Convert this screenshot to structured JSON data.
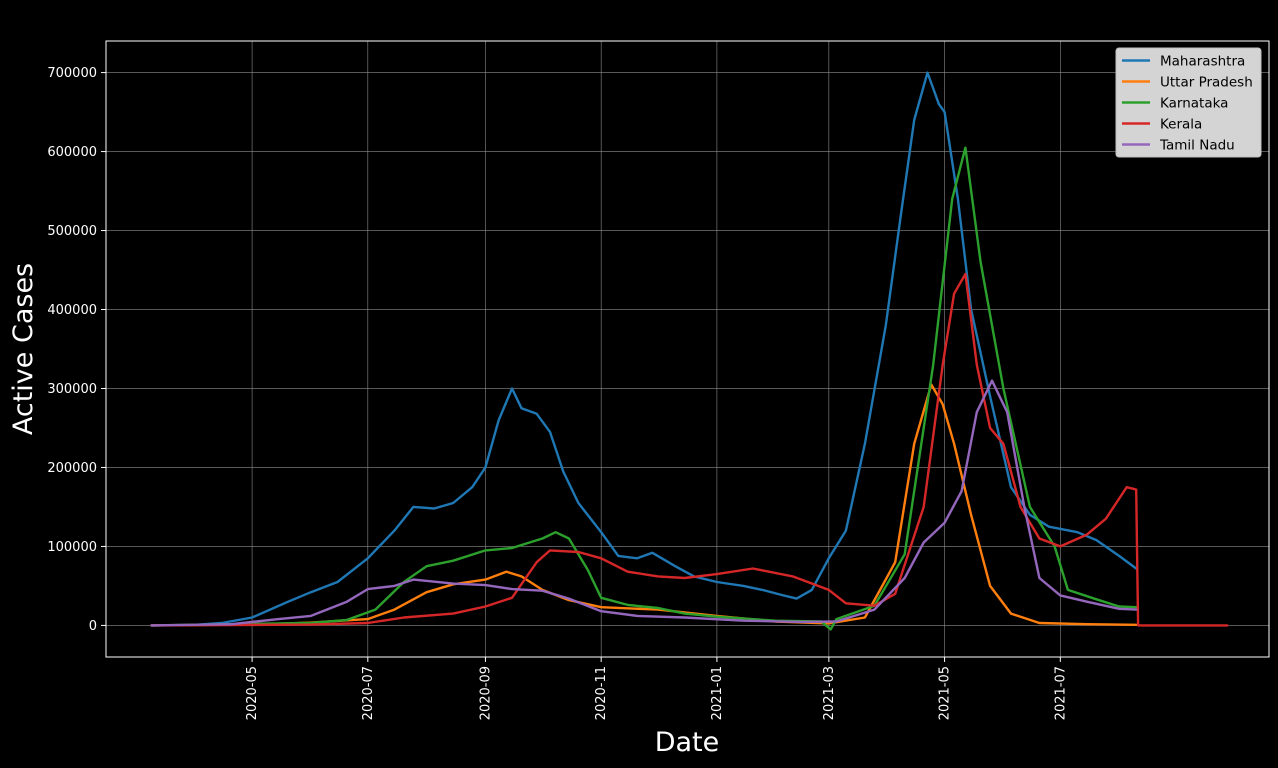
{
  "chart_data": {
    "type": "line",
    "title": "",
    "xlabel": "Date",
    "ylabel": "Active Cases",
    "xlim": [
      "2020-02-14",
      "2021-10-19"
    ],
    "ylim": [
      -40000,
      740000
    ],
    "grid": true,
    "legend_position": "top-right",
    "x_ticks": [
      "2020-05",
      "2020-07",
      "2020-09",
      "2020-11",
      "2021-01",
      "2021-03",
      "2021-05",
      "2021-07"
    ],
    "y_ticks": [
      0,
      100000,
      200000,
      300000,
      400000,
      500000,
      600000,
      700000
    ],
    "series": [
      {
        "name": "Maharashtra",
        "color": "#1f77b4",
        "points": [
          [
            "2020-03-09",
            0
          ],
          [
            "2020-03-31",
            500
          ],
          [
            "2020-04-15",
            3000
          ],
          [
            "2020-05-01",
            10000
          ],
          [
            "2020-05-20",
            30000
          ],
          [
            "2020-06-01",
            42000
          ],
          [
            "2020-06-15",
            55000
          ],
          [
            "2020-07-01",
            85000
          ],
          [
            "2020-07-15",
            120000
          ],
          [
            "2020-07-25",
            150000
          ],
          [
            "2020-08-05",
            148000
          ],
          [
            "2020-08-15",
            155000
          ],
          [
            "2020-08-25",
            175000
          ],
          [
            "2020-09-01",
            200000
          ],
          [
            "2020-09-08",
            260000
          ],
          [
            "2020-09-15",
            300000
          ],
          [
            "2020-09-20",
            275000
          ],
          [
            "2020-09-28",
            268000
          ],
          [
            "2020-10-05",
            245000
          ],
          [
            "2020-10-12",
            195000
          ],
          [
            "2020-10-20",
            155000
          ],
          [
            "2020-11-01",
            118000
          ],
          [
            "2020-11-10",
            88000
          ],
          [
            "2020-11-20",
            85000
          ],
          [
            "2020-11-28",
            92000
          ],
          [
            "2020-12-10",
            75000
          ],
          [
            "2020-12-20",
            62000
          ],
          [
            "2021-01-01",
            55000
          ],
          [
            "2021-01-15",
            50000
          ],
          [
            "2021-01-25",
            45000
          ],
          [
            "2021-02-05",
            38000
          ],
          [
            "2021-02-12",
            34000
          ],
          [
            "2021-02-20",
            45000
          ],
          [
            "2021-03-01",
            85000
          ],
          [
            "2021-03-10",
            120000
          ],
          [
            "2021-03-20",
            230000
          ],
          [
            "2021-03-31",
            380000
          ],
          [
            "2021-04-08",
            520000
          ],
          [
            "2021-04-15",
            640000
          ],
          [
            "2021-04-22",
            700000
          ],
          [
            "2021-04-28",
            660000
          ],
          [
            "2021-05-01",
            650000
          ],
          [
            "2021-05-08",
            540000
          ],
          [
            "2021-05-15",
            400000
          ],
          [
            "2021-05-25",
            290000
          ],
          [
            "2021-06-05",
            175000
          ],
          [
            "2021-06-15",
            140000
          ],
          [
            "2021-06-25",
            125000
          ],
          [
            "2021-07-10",
            118000
          ],
          [
            "2021-07-20",
            108000
          ],
          [
            "2021-08-01",
            88000
          ],
          [
            "2021-08-10",
            72000
          ]
        ]
      },
      {
        "name": "Uttar Pradesh",
        "color": "#ff7f0e",
        "points": [
          [
            "2020-03-09",
            0
          ],
          [
            "2020-05-01",
            1000
          ],
          [
            "2020-06-01",
            3500
          ],
          [
            "2020-07-01",
            8000
          ],
          [
            "2020-07-15",
            20000
          ],
          [
            "2020-08-01",
            42000
          ],
          [
            "2020-08-15",
            52000
          ],
          [
            "2020-09-01",
            58000
          ],
          [
            "2020-09-12",
            68000
          ],
          [
            "2020-09-20",
            62000
          ],
          [
            "2020-10-01",
            45000
          ],
          [
            "2020-10-15",
            32000
          ],
          [
            "2020-11-01",
            23000
          ],
          [
            "2020-12-01",
            20000
          ],
          [
            "2021-01-01",
            12000
          ],
          [
            "2021-02-01",
            5000
          ],
          [
            "2021-03-01",
            2500
          ],
          [
            "2021-03-20",
            10000
          ],
          [
            "2021-04-05",
            80000
          ],
          [
            "2021-04-15",
            230000
          ],
          [
            "2021-04-24",
            305000
          ],
          [
            "2021-04-30",
            280000
          ],
          [
            "2021-05-06",
            230000
          ],
          [
            "2021-05-15",
            140000
          ],
          [
            "2021-05-25",
            50000
          ],
          [
            "2021-06-05",
            15000
          ],
          [
            "2021-06-20",
            3000
          ],
          [
            "2021-07-15",
            1500
          ],
          [
            "2021-08-10",
            800
          ]
        ]
      },
      {
        "name": "Karnataka",
        "color": "#2ca02c",
        "points": [
          [
            "2020-03-09",
            0
          ],
          [
            "2020-06-01",
            3000
          ],
          [
            "2020-06-20",
            7000
          ],
          [
            "2020-07-05",
            20000
          ],
          [
            "2020-07-20",
            55000
          ],
          [
            "2020-08-01",
            75000
          ],
          [
            "2020-08-15",
            82000
          ],
          [
            "2020-09-01",
            95000
          ],
          [
            "2020-09-15",
            98000
          ],
          [
            "2020-10-01",
            110000
          ],
          [
            "2020-10-08",
            118000
          ],
          [
            "2020-10-15",
            110000
          ],
          [
            "2020-10-25",
            70000
          ],
          [
            "2020-11-01",
            35000
          ],
          [
            "2020-11-15",
            26000
          ],
          [
            "2020-12-01",
            22000
          ],
          [
            "2020-12-15",
            15000
          ],
          [
            "2021-01-01",
            11000
          ],
          [
            "2021-02-01",
            6000
          ],
          [
            "2021-02-25",
            5000
          ],
          [
            "2021-03-02",
            -5000
          ],
          [
            "2021-03-05",
            8000
          ],
          [
            "2021-03-25",
            25000
          ],
          [
            "2021-04-10",
            90000
          ],
          [
            "2021-04-25",
            330000
          ],
          [
            "2021-05-05",
            540000
          ],
          [
            "2021-05-12",
            605000
          ],
          [
            "2021-05-20",
            460000
          ],
          [
            "2021-06-01",
            300000
          ],
          [
            "2021-06-15",
            150000
          ],
          [
            "2021-06-28",
            100000
          ],
          [
            "2021-07-05",
            45000
          ],
          [
            "2021-07-20",
            33000
          ],
          [
            "2021-08-01",
            24000
          ],
          [
            "2021-08-10",
            23000
          ]
        ]
      },
      {
        "name": "Kerala",
        "color": "#d62728",
        "points": [
          [
            "2020-03-09",
            0
          ],
          [
            "2020-06-01",
            1000
          ],
          [
            "2020-07-01",
            3000
          ],
          [
            "2020-07-20",
            10000
          ],
          [
            "2020-08-15",
            15000
          ],
          [
            "2020-09-01",
            24000
          ],
          [
            "2020-09-15",
            35000
          ],
          [
            "2020-09-28",
            80000
          ],
          [
            "2020-10-05",
            95000
          ],
          [
            "2020-10-20",
            93000
          ],
          [
            "2020-11-01",
            85000
          ],
          [
            "2020-11-15",
            68000
          ],
          [
            "2020-12-01",
            62000
          ],
          [
            "2020-12-15",
            60000
          ],
          [
            "2021-01-01",
            65000
          ],
          [
            "2021-01-20",
            72000
          ],
          [
            "2021-02-10",
            62000
          ],
          [
            "2021-03-01",
            45000
          ],
          [
            "2021-03-10",
            28000
          ],
          [
            "2021-03-25",
            25000
          ],
          [
            "2021-04-05",
            40000
          ],
          [
            "2021-04-20",
            150000
          ],
          [
            "2021-04-30",
            330000
          ],
          [
            "2021-05-06",
            420000
          ],
          [
            "2021-05-12",
            445000
          ],
          [
            "2021-05-18",
            330000
          ],
          [
            "2021-05-25",
            250000
          ],
          [
            "2021-06-01",
            230000
          ],
          [
            "2021-06-10",
            150000
          ],
          [
            "2021-06-20",
            110000
          ],
          [
            "2021-07-01",
            100000
          ],
          [
            "2021-07-15",
            115000
          ],
          [
            "2021-07-25",
            135000
          ],
          [
            "2021-08-05",
            175000
          ],
          [
            "2021-08-10",
            172000
          ],
          [
            "2021-08-11",
            0
          ],
          [
            "2021-09-27",
            0
          ]
        ]
      },
      {
        "name": "Tamil Nadu",
        "color": "#9467bd",
        "points": [
          [
            "2020-03-09",
            0
          ],
          [
            "2020-04-20",
            1500
          ],
          [
            "2020-05-15",
            8000
          ],
          [
            "2020-06-01",
            12000
          ],
          [
            "2020-06-20",
            30000
          ],
          [
            "2020-07-01",
            46000
          ],
          [
            "2020-07-15",
            50000
          ],
          [
            "2020-07-25",
            58000
          ],
          [
            "2020-08-15",
            53000
          ],
          [
            "2020-09-01",
            51000
          ],
          [
            "2020-09-15",
            46000
          ],
          [
            "2020-10-01",
            44000
          ],
          [
            "2020-10-15",
            34000
          ],
          [
            "2020-11-01",
            18000
          ],
          [
            "2020-11-20",
            12000
          ],
          [
            "2020-12-15",
            10000
          ],
          [
            "2021-01-15",
            6000
          ],
          [
            "2021-02-15",
            4500
          ],
          [
            "2021-03-05",
            5000
          ],
          [
            "2021-03-25",
            20000
          ],
          [
            "2021-04-10",
            60000
          ],
          [
            "2021-04-20",
            105000
          ],
          [
            "2021-05-01",
            130000
          ],
          [
            "2021-05-10",
            170000
          ],
          [
            "2021-05-18",
            270000
          ],
          [
            "2021-05-26",
            310000
          ],
          [
            "2021-06-03",
            270000
          ],
          [
            "2021-06-12",
            150000
          ],
          [
            "2021-06-20",
            60000
          ],
          [
            "2021-07-01",
            38000
          ],
          [
            "2021-07-15",
            30000
          ],
          [
            "2021-08-01",
            21000
          ],
          [
            "2021-08-10",
            20000
          ]
        ]
      }
    ]
  }
}
